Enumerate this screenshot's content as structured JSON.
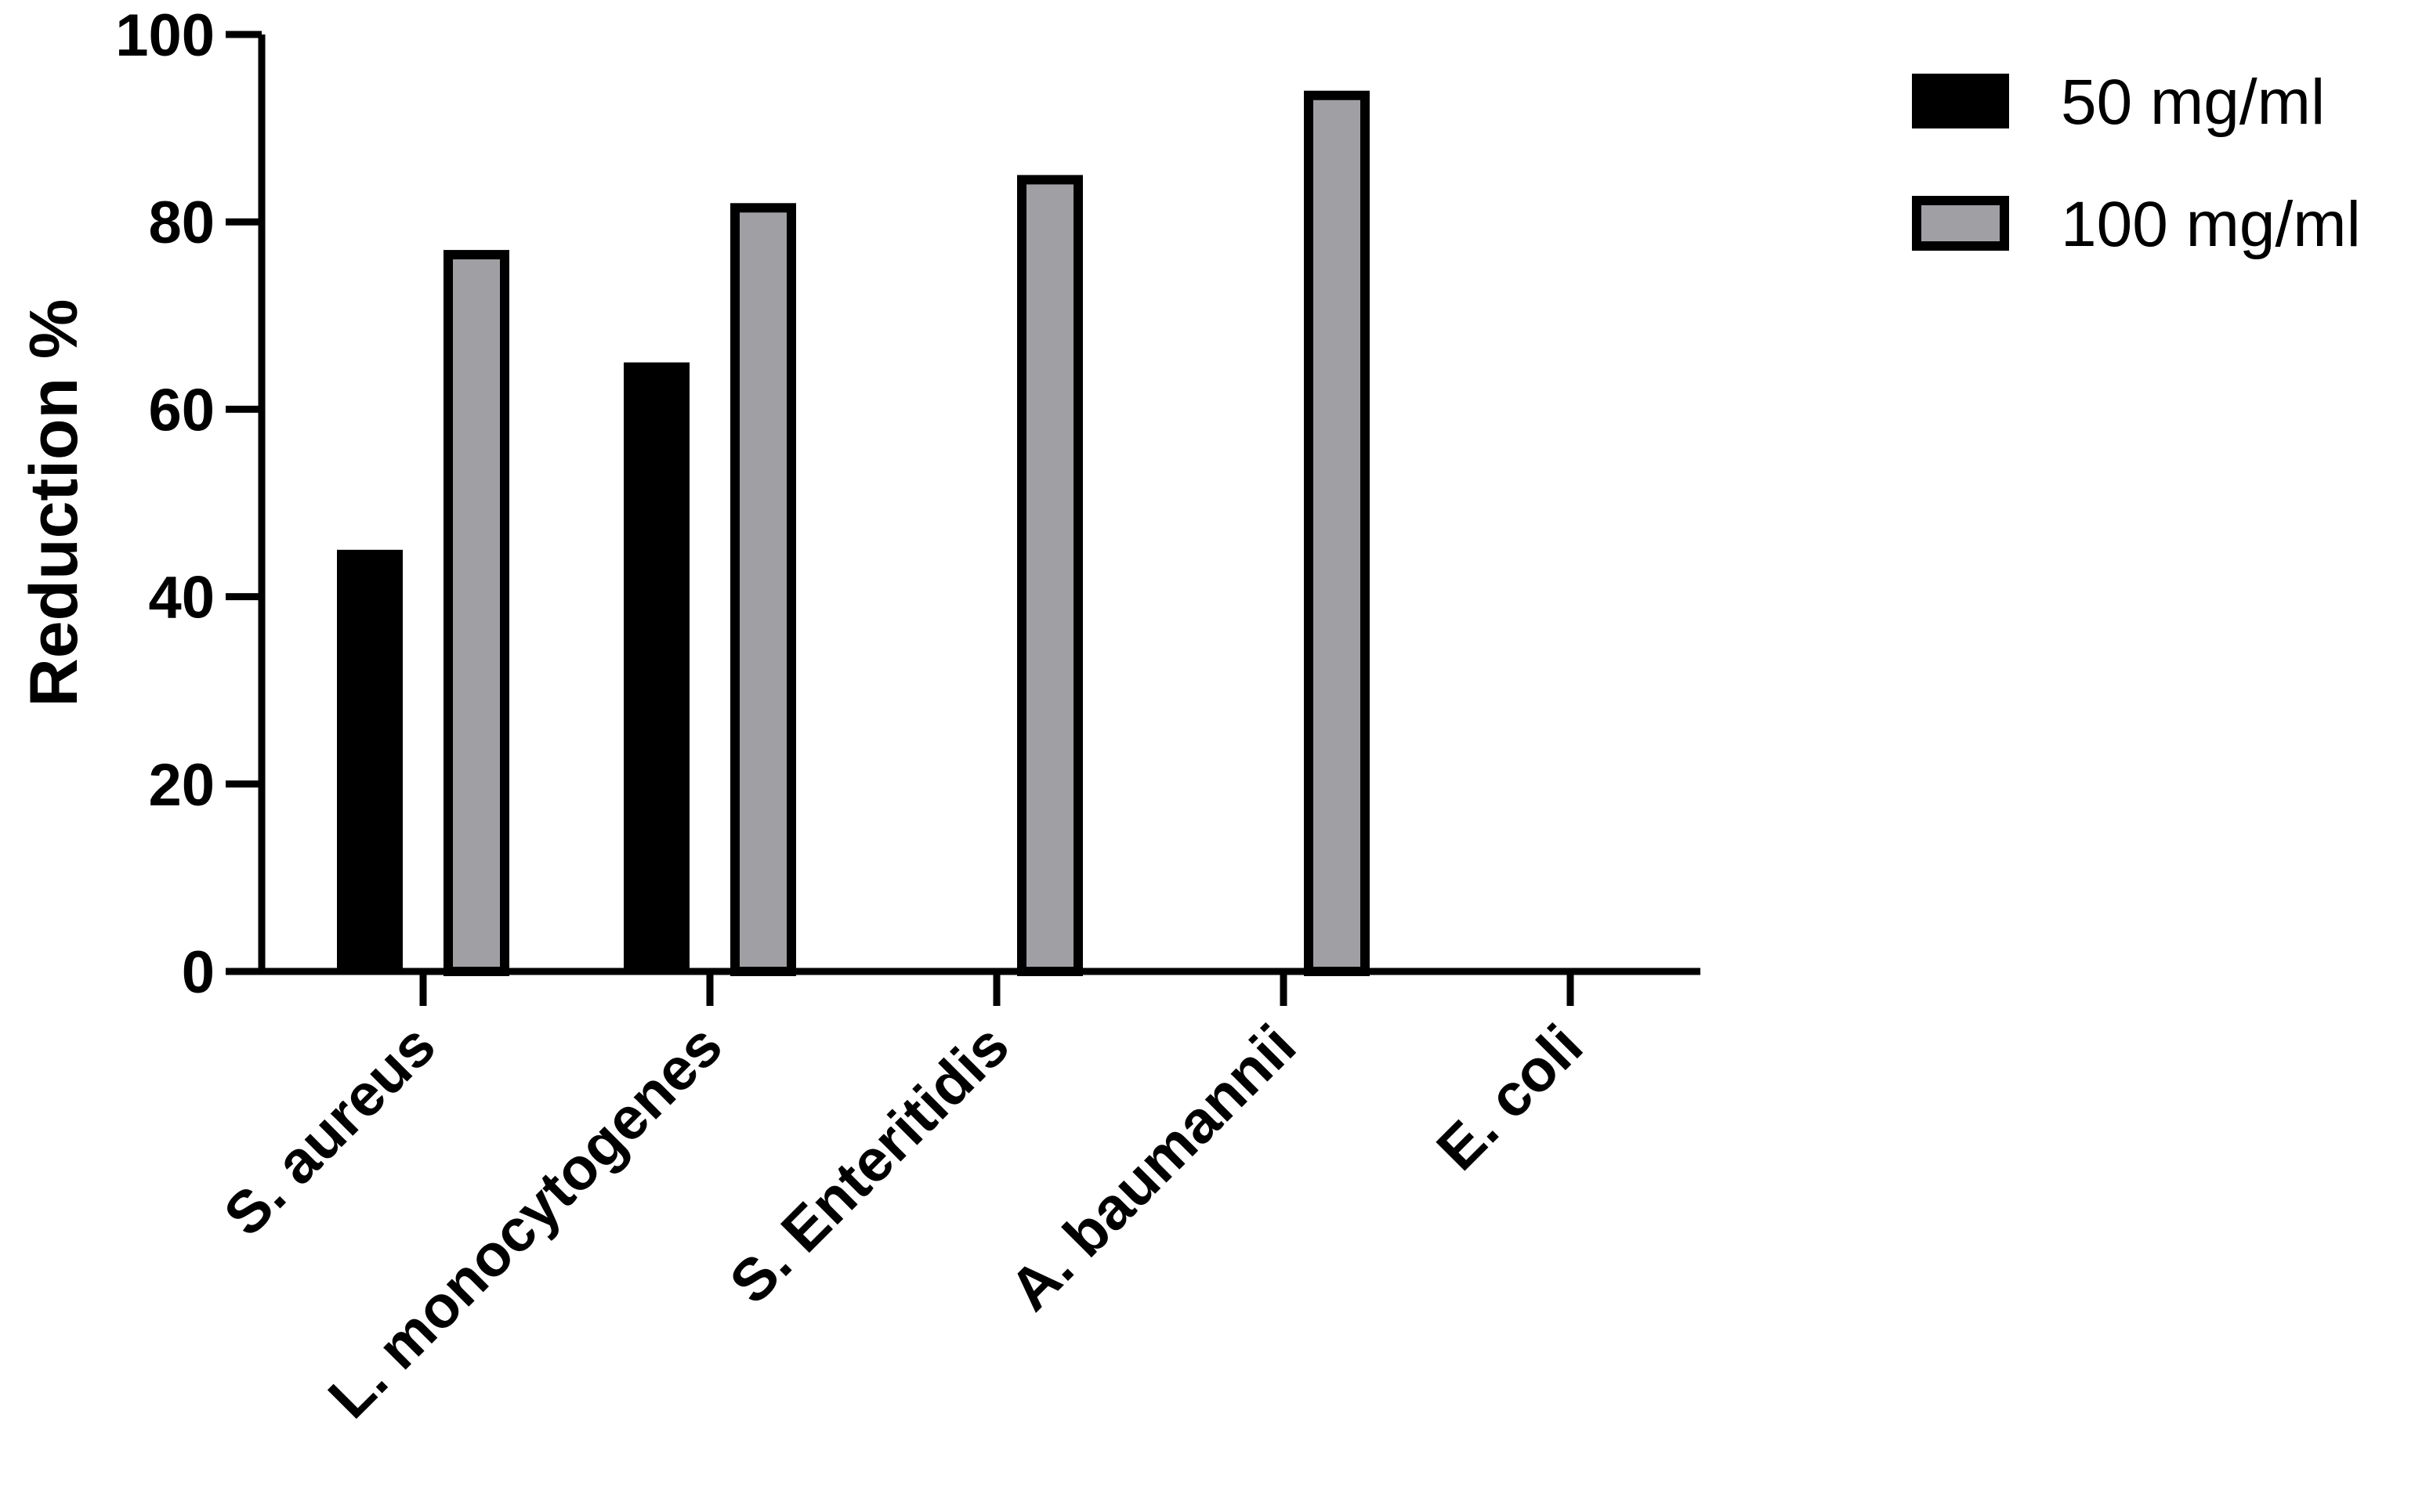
{
  "chart_data": {
    "type": "bar",
    "title": "",
    "xlabel": "",
    "ylabel": "Reduction %",
    "ylim": [
      0,
      100
    ],
    "yticks": [
      "0",
      "20",
      "40",
      "60",
      "80",
      "100"
    ],
    "categories": [
      "S. aureus",
      "L. monocytogenes",
      "S. Enteritidis",
      "A. baumannii",
      "E. coli"
    ],
    "series": [
      {
        "name": "50 mg/ml",
        "color": "#000000",
        "values": [
          45,
          65,
          0,
          0,
          0
        ]
      },
      {
        "name": "100 mg/ml",
        "color": "#a0a0a4",
        "values": [
          77,
          82,
          85,
          94,
          0
        ]
      }
    ],
    "legend_position": "top-right",
    "grid": false
  }
}
